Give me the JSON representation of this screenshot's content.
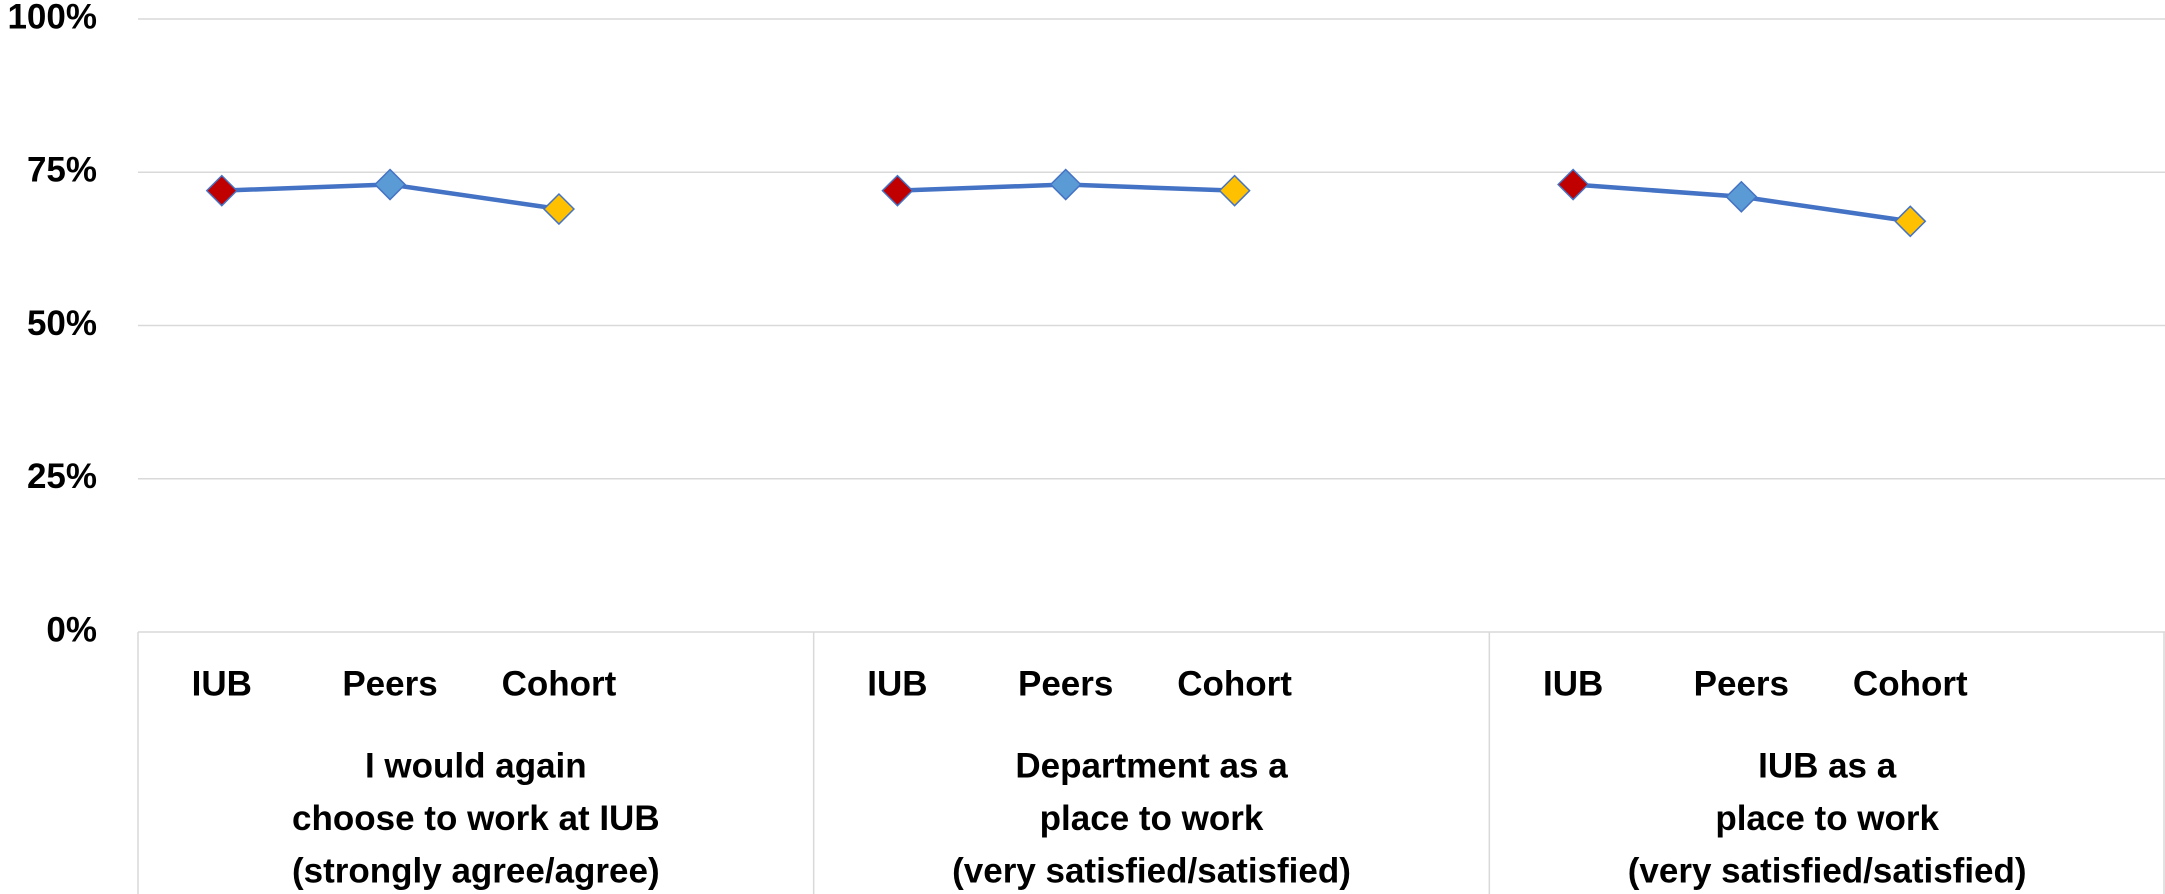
{
  "chart_data": {
    "type": "line",
    "ylim": [
      0,
      100
    ],
    "yticks": [
      {
        "value": 0,
        "label": "0%"
      },
      {
        "value": 25,
        "label": "25%"
      },
      {
        "value": 50,
        "label": "50%"
      },
      {
        "value": 75,
        "label": "75%"
      },
      {
        "value": 100,
        "label": "100%"
      }
    ],
    "grid": true,
    "line_color": "#4472c4",
    "marker_colors": [
      "#c00000",
      "#5b9bd5",
      "#ffc000"
    ],
    "groups": [
      {
        "label": [
          "I would again",
          "choose to work at IUB",
          "(strongly agree/agree)"
        ],
        "categories": [
          "IUB",
          "Peers",
          "Cohort"
        ],
        "values": [
          72,
          73,
          69
        ]
      },
      {
        "label": [
          "Department as a",
          "place to work",
          "(very satisfied/satisfied)"
        ],
        "categories": [
          "IUB",
          "Peers",
          "Cohort"
        ],
        "values": [
          72,
          73,
          72
        ]
      },
      {
        "label": [
          "IUB as a",
          "place to work",
          "(very satisfied/satisfied)"
        ],
        "categories": [
          "IUB",
          "Peers",
          "Cohort"
        ],
        "values": [
          73,
          71,
          67
        ]
      }
    ]
  }
}
